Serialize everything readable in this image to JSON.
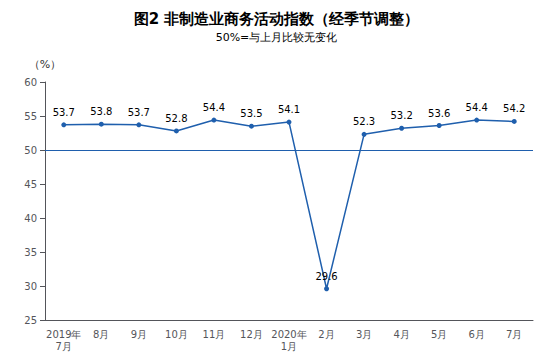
{
  "chart_data": {
    "type": "line",
    "title": "图2 非制造业商务活动指数（经季节调整）",
    "subtitle": "50%=与上月比较无变化",
    "ylabel": "（%）",
    "categories": [
      "2019年\n7月",
      "8月",
      "9月",
      "10月",
      "11月",
      "12月",
      "2020年\n1月",
      "2月",
      "3月",
      "4月",
      "5月",
      "6月",
      "7月"
    ],
    "values": [
      53.7,
      53.8,
      53.7,
      52.8,
      54.4,
      53.5,
      54.1,
      29.6,
      52.3,
      53.2,
      53.6,
      54.4,
      54.2
    ],
    "color": "#1F5FAD",
    "marker": "circle",
    "ylim": [
      25,
      60
    ],
    "yticks": [
      25,
      30,
      35,
      40,
      45,
      50,
      55,
      60
    ],
    "hline": 50,
    "grid": false,
    "data_labels": true
  }
}
